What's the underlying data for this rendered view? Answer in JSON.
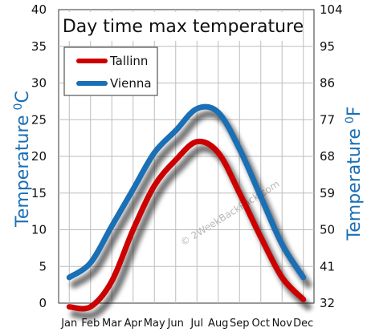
{
  "chart_data": {
    "type": "line",
    "title": "Day time max temperature",
    "categories": [
      "Jan",
      "Feb",
      "Mar",
      "Apr",
      "May",
      "Jun",
      "Jul",
      "Aug",
      "Sep",
      "Oct",
      "Nov",
      "Dec"
    ],
    "series": [
      {
        "name": "Tallinn",
        "color": "#cc0000",
        "values": [
          -0.5,
          -0.5,
          3,
          10,
          16,
          19.5,
          22,
          20.5,
          15,
          9,
          3.5,
          0.5
        ]
      },
      {
        "name": "Vienna",
        "color": "#1a6fb5",
        "values": [
          3.5,
          5.5,
          10.5,
          15.5,
          20.5,
          23.5,
          26.5,
          26,
          21,
          14.5,
          8,
          3.5
        ]
      }
    ],
    "ylabel_left": "Temperature",
    "ylabel_left_unit": "C",
    "ylabel_right": "Temperature",
    "ylabel_right_unit": "F",
    "unit_superscript": "0",
    "ylim_left": [
      0,
      40
    ],
    "yticks_left": [
      "0",
      "5",
      "10",
      "15",
      "20",
      "25",
      "30",
      "35",
      "40"
    ],
    "yticks_right": [
      "32",
      "41",
      "50",
      "59",
      "68",
      "77",
      "86",
      "95",
      "104"
    ],
    "grid": true,
    "legend_position": "top-left",
    "watermark": "© 2WeekBackPack.com"
  }
}
